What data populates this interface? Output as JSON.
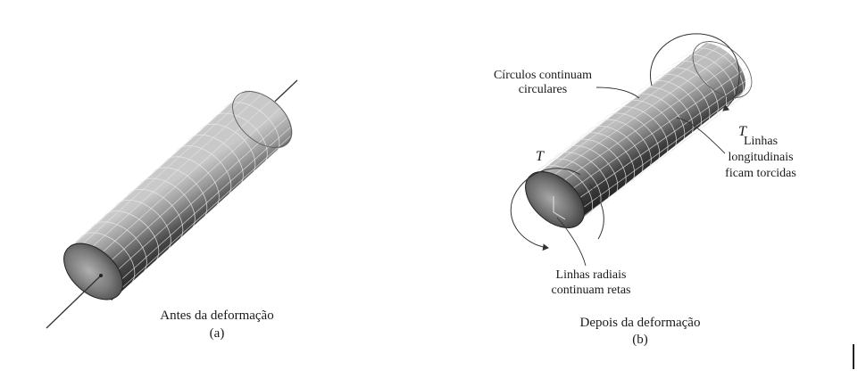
{
  "panel_a": {
    "caption": "Antes da deformação",
    "letter": "(a)"
  },
  "panel_b": {
    "caption": "Depois da deformação",
    "letter": "(b)",
    "label_circles_1": "Círculos continuam",
    "label_circles_2": "circulares",
    "label_long_1": "Linhas",
    "label_long_2": "longitudinais",
    "label_long_3": "ficam torcidas",
    "label_radial_1": "Linhas radiais",
    "label_radial_2": "continuam retas",
    "torque_symbol": "T"
  },
  "grid": {
    "rings_a": 14,
    "rings_b": 20,
    "longitudinal_lines": 9
  }
}
